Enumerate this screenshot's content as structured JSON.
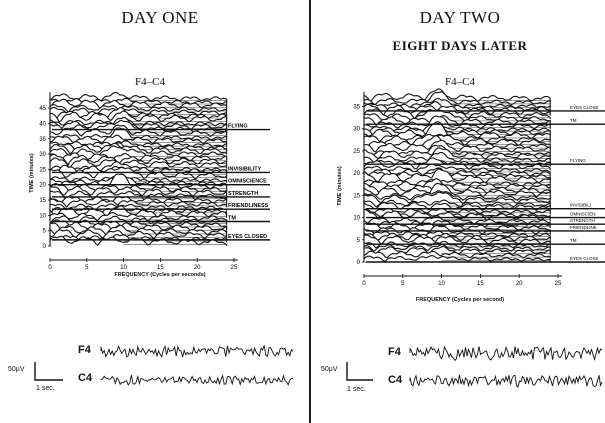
{
  "left": {
    "title": "DAY ONE",
    "electrode": "F4–C4",
    "y_label": "TIME (minutes)",
    "x_label": "FREQUENCY (Cycles per seconds)",
    "y_ticks": [
      "45",
      "40",
      "35",
      "30",
      "25",
      "20",
      "15",
      "10",
      "5",
      "0"
    ],
    "x_ticks": [
      "0",
      "5",
      "10",
      "15",
      "20",
      "25"
    ],
    "conditions": [
      {
        "label": "FLYING",
        "t": 38
      },
      {
        "label": "INVISIBILITY",
        "t": 24
      },
      {
        "label": "OMNISCIENCE",
        "t": 20
      },
      {
        "label": "STRENGTH",
        "t": 16
      },
      {
        "label": "FRIENDLINESS",
        "t": 12
      },
      {
        "label": "TM",
        "t": 8
      },
      {
        "label": "EYES CLOSED",
        "t": 2
      }
    ],
    "eeg": {
      "ch1": "F4",
      "ch2": "C4",
      "scale_v": "50μV",
      "scale_t": "1 sec."
    }
  },
  "right": {
    "title": "DAY TWO",
    "subtitle": "EIGHT DAYS LATER",
    "electrode": "F4–C4",
    "y_label": "TIME (minutes)",
    "x_label": "FREQUENCY (Cycles per second)",
    "y_ticks": [
      "35",
      "30",
      "25",
      "20",
      "15",
      "10",
      "5",
      "0"
    ],
    "x_ticks": [
      "0",
      "5",
      "10",
      "15",
      "20",
      "25"
    ],
    "conditions": [
      {
        "label": "EYES CLOSE",
        "t": 34
      },
      {
        "label": "TM",
        "t": 31
      },
      {
        "label": "FLYING",
        "t": 22
      },
      {
        "label": "INVISIBILI",
        "t": 12
      },
      {
        "label": "OMNISCIEN",
        "t": 10
      },
      {
        "label": "STRENGTH",
        "t": 8.5
      },
      {
        "label": "FRIENDLINE",
        "t": 7
      },
      {
        "label": "TM",
        "t": 4
      },
      {
        "label": "EYES CLOSE",
        "t": 0
      }
    ],
    "eeg": {
      "ch1": "F4",
      "ch2": "C4",
      "scale_v": "50μV",
      "scale_t": "1 sec."
    }
  }
}
